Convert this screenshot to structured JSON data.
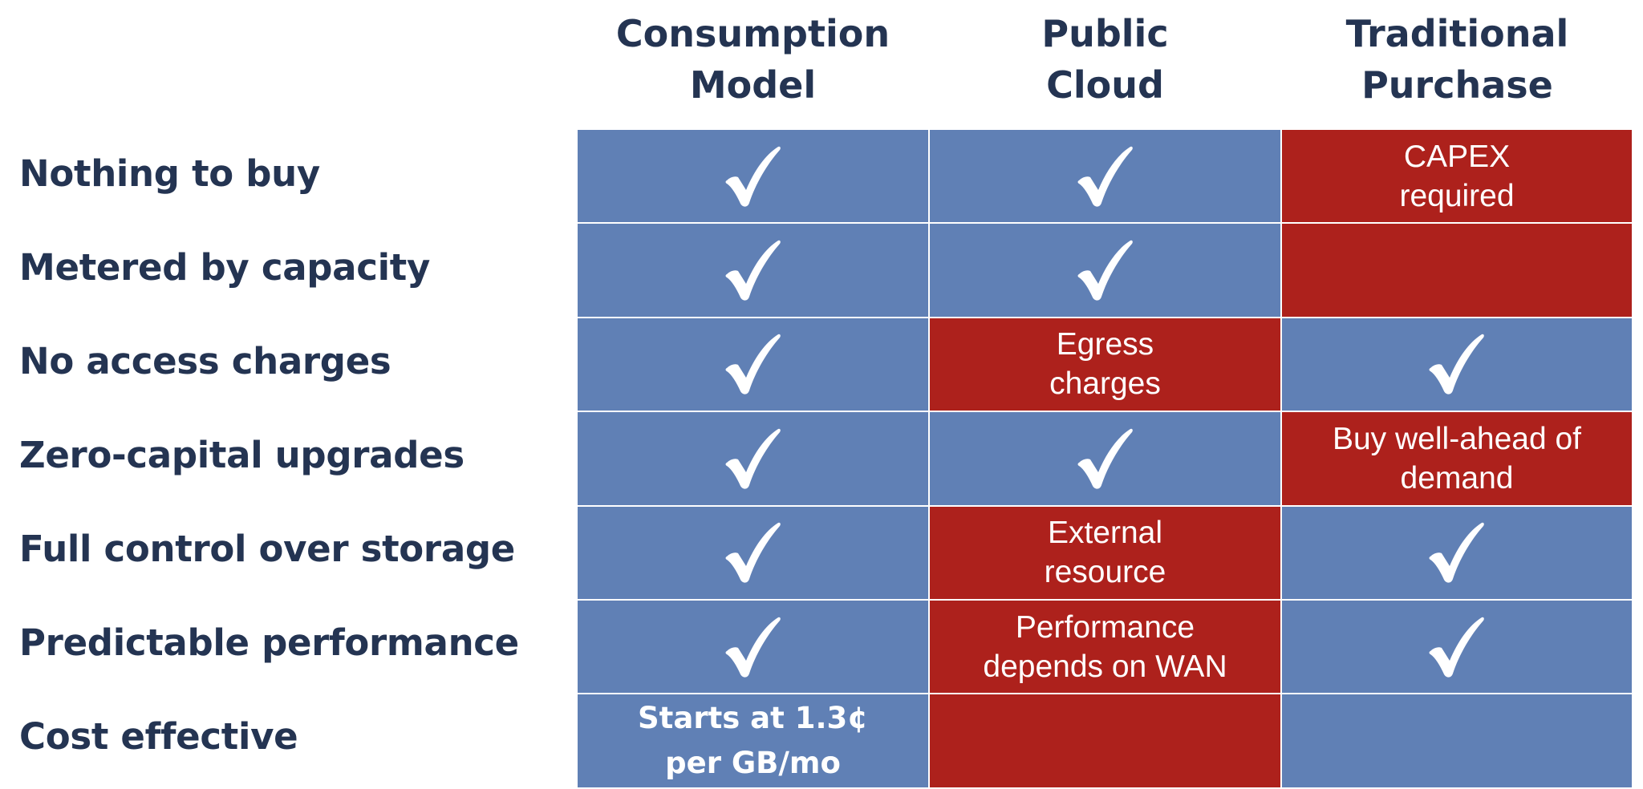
{
  "columns": [
    {
      "label": "Consumption\nModel"
    },
    {
      "label": "Public\nCloud"
    },
    {
      "label": "Traditional\nPurchase"
    }
  ],
  "rows": [
    {
      "label": "Nothing to buy"
    },
    {
      "label": "Metered by capacity"
    },
    {
      "label": "No access charges"
    },
    {
      "label": "Zero-capital upgrades"
    },
    {
      "label": "Full control over storage"
    },
    {
      "label": "Predictable performance"
    },
    {
      "label": "Cost effective"
    }
  ],
  "cells": [
    [
      {
        "color": "blue",
        "icon": "check-icon",
        "text": ""
      },
      {
        "color": "blue",
        "icon": "check-icon",
        "text": ""
      },
      {
        "color": "red",
        "icon": "",
        "text": "CAPEX\nrequired"
      }
    ],
    [
      {
        "color": "blue",
        "icon": "check-icon",
        "text": ""
      },
      {
        "color": "blue",
        "icon": "check-icon",
        "text": ""
      },
      {
        "color": "red",
        "icon": "",
        "text": ""
      }
    ],
    [
      {
        "color": "blue",
        "icon": "check-icon",
        "text": ""
      },
      {
        "color": "red",
        "icon": "",
        "text": "Egress\ncharges"
      },
      {
        "color": "blue",
        "icon": "check-icon",
        "text": ""
      }
    ],
    [
      {
        "color": "blue",
        "icon": "check-icon",
        "text": ""
      },
      {
        "color": "blue",
        "icon": "check-icon",
        "text": ""
      },
      {
        "color": "red",
        "icon": "",
        "text": "Buy well-ahead of\ndemand"
      }
    ],
    [
      {
        "color": "blue",
        "icon": "check-icon",
        "text": ""
      },
      {
        "color": "red",
        "icon": "",
        "text": "External\nresource"
      },
      {
        "color": "blue",
        "icon": "check-icon",
        "text": ""
      }
    ],
    [
      {
        "color": "blue",
        "icon": "check-icon",
        "text": ""
      },
      {
        "color": "red",
        "icon": "",
        "text": "Performance\ndepends on WAN"
      },
      {
        "color": "blue",
        "icon": "check-icon",
        "text": ""
      }
    ],
    [
      {
        "color": "blue",
        "icon": "",
        "text": "Starts at 1.3¢\nper GB/mo",
        "bold": true
      },
      {
        "color": "red",
        "icon": "",
        "text": ""
      },
      {
        "color": "blue",
        "icon": "",
        "text": ""
      }
    ]
  ],
  "colors": {
    "header_text": "#243452",
    "blue_cell": "#6080b5",
    "red_cell": "#ad211c",
    "cell_text": "#ffffff"
  }
}
